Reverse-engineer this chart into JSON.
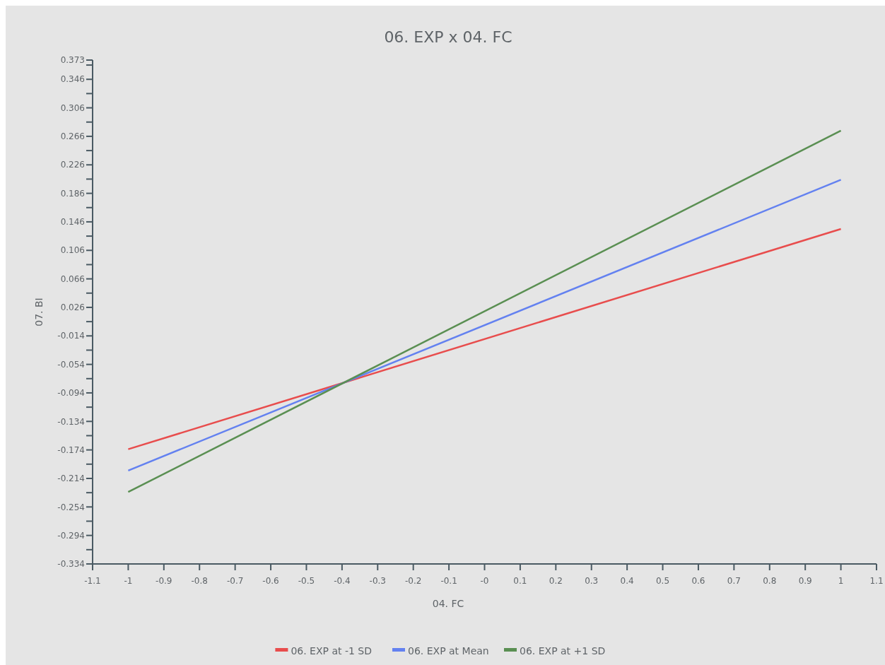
{
  "chart_data": {
    "type": "line",
    "title": "06. EXP x 04. FC",
    "xlabel": "04. FC",
    "ylabel": "07. BI",
    "x": [
      -1,
      1
    ],
    "series": [
      {
        "name": "06. EXP at -1 SD",
        "color": "#e84d4d",
        "values": [
          -0.173,
          0.136
        ]
      },
      {
        "name": "06. EXP at Mean",
        "color": "#6381f0",
        "values": [
          -0.203,
          0.205
        ]
      },
      {
        "name": "06. EXP at +1 SD",
        "color": "#5a8f52",
        "values": [
          -0.233,
          0.274
        ]
      }
    ],
    "xlim": [
      -1.1,
      1.1
    ],
    "xticks": [
      -1.1,
      -1,
      -0.9,
      -0.8,
      -0.7,
      -0.6,
      -0.5,
      -0.4,
      -0.3,
      -0.2,
      -0.1,
      {
        "value": 0,
        "label": "-0"
      },
      0.1,
      0.2,
      0.3,
      0.4,
      0.5,
      0.6,
      0.7,
      0.8,
      0.9,
      1,
      1.1
    ],
    "ylim": [
      -0.334,
      0.373
    ],
    "yticks": [
      -0.334,
      {
        "value": -0.314,
        "label": null
      },
      -0.294,
      {
        "value": -0.274,
        "label": null
      },
      -0.254,
      {
        "value": -0.234,
        "label": null
      },
      -0.214,
      {
        "value": -0.194,
        "label": null
      },
      -0.174,
      {
        "value": -0.154,
        "label": null
      },
      -0.134,
      {
        "value": -0.114,
        "label": null
      },
      -0.094,
      {
        "value": -0.074,
        "label": null
      },
      -0.054,
      {
        "value": -0.034,
        "label": null
      },
      -0.014,
      {
        "value": 0.006,
        "label": null
      },
      0.026,
      {
        "value": 0.046,
        "label": null
      },
      0.066,
      {
        "value": 0.086,
        "label": null
      },
      0.106,
      {
        "value": 0.126,
        "label": null
      },
      0.146,
      {
        "value": 0.166,
        "label": null
      },
      0.186,
      {
        "value": 0.206,
        "label": null
      },
      0.226,
      {
        "value": 0.246,
        "label": null
      },
      0.266,
      {
        "value": 0.286,
        "label": null
      },
      0.306,
      {
        "value": 0.326,
        "label": null
      },
      0.346,
      {
        "value": 0.366,
        "label": null
      },
      0.373
    ],
    "grid": false,
    "legend": "bottom",
    "marker": "none",
    "line_style": "solid"
  }
}
